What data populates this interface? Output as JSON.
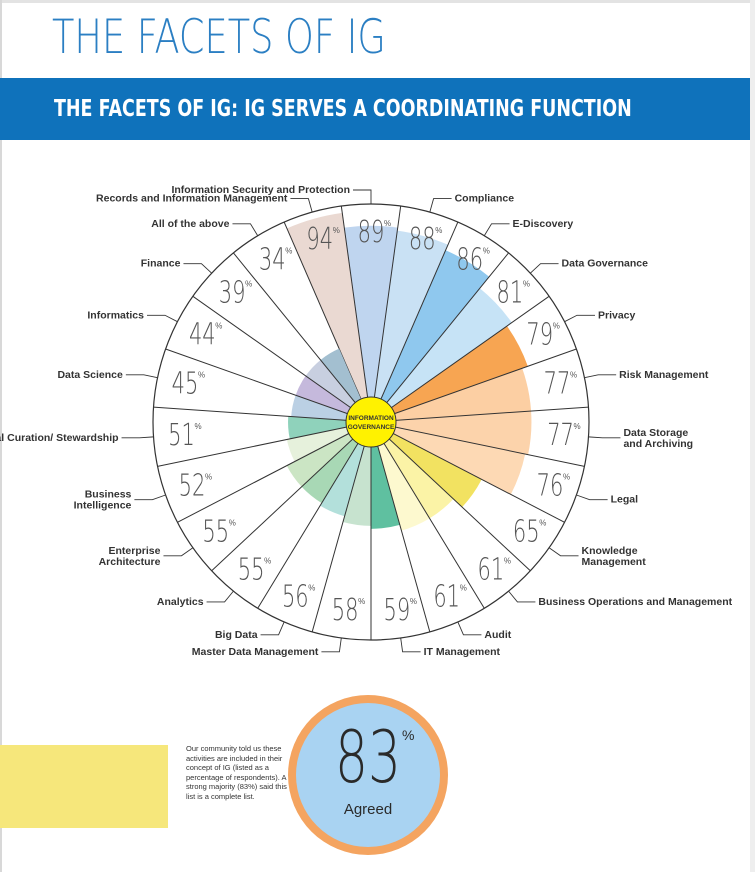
{
  "page": {
    "title": "THE FACETS OF IG",
    "banner": "THE FACETS OF IG: IG SERVES A COORDINATING FUNCTION"
  },
  "chart_data": {
    "type": "pie",
    "center_label": [
      "INFORMATION",
      "GOVERNANCE"
    ],
    "unit": "%",
    "categories": [
      "Records and Information Management",
      "Information Security and Protection",
      "Compliance",
      "E-Discovery",
      "Data Governance",
      "Privacy",
      "Risk Management",
      "Data Storage and Archiving",
      "Legal",
      "Knowledge Management",
      "Business Operations and Management",
      "Audit",
      "IT Management",
      "Master Data Management",
      "Big Data",
      "Analytics",
      "Enterprise Architecture",
      "Business Intelligence",
      "Digital Curation/ Stewardship",
      "Data Science",
      "Informatics",
      "Finance",
      "All of the above"
    ],
    "values": [
      94,
      89,
      88,
      86,
      81,
      79,
      77,
      77,
      76,
      65,
      61,
      61,
      59,
      58,
      56,
      55,
      55,
      52,
      51,
      45,
      44,
      39,
      34
    ],
    "colors": [
      "#ead9d2",
      "#bfd5ef",
      "#c9e1f4",
      "#8fc8ee",
      "#c6e3f6",
      "#f7a552",
      "#fccfa3",
      "#fcd3ab",
      "#fdd9b4",
      "#f2e261",
      "#fbf3a6",
      "#fdf9cf",
      "#5fc0a0",
      "#c7e3cf",
      "#b3e0db",
      "#a8d8b5",
      "#cbe5c4",
      "#e6f1dc",
      "#8fd2bb",
      "#bbd0e4",
      "#c5b9dc",
      "#c8cfe0",
      "#a3bfd0"
    ]
  },
  "callout": {
    "value": "83",
    "unit": "%",
    "label": "Agreed",
    "note": "Our community told us these activities are included in their concept of IG (listed as a percentage of respondents). A strong majority (83%) said this list is a complete list."
  }
}
